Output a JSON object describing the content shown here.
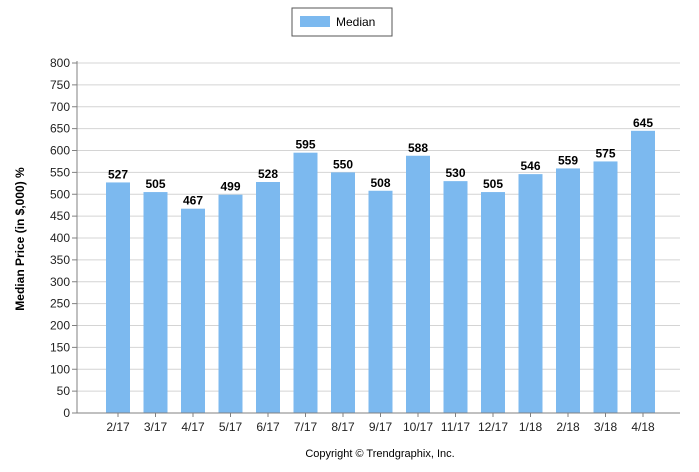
{
  "chart_data": {
    "type": "bar",
    "categories": [
      "2/17",
      "3/17",
      "4/17",
      "5/17",
      "6/17",
      "7/17",
      "8/17",
      "9/17",
      "10/17",
      "11/17",
      "12/17",
      "1/18",
      "2/18",
      "3/18",
      "4/18"
    ],
    "series": [
      {
        "name": "Median",
        "values": [
          527,
          505,
          467,
          499,
          528,
          595,
          550,
          508,
          588,
          530,
          505,
          546,
          559,
          575,
          645
        ]
      }
    ],
    "ylabel": "Median Price (in $,000) %",
    "xlabel": "",
    "ylim": [
      0,
      800
    ],
    "ytick_step": 50,
    "grid": true,
    "legend_position": "top-center",
    "colors": {
      "bar": "#7cb9ef",
      "grid": "#d4d4d4",
      "axis": "#808080"
    },
    "footer": "Copyright © Trendgraphix, Inc."
  }
}
